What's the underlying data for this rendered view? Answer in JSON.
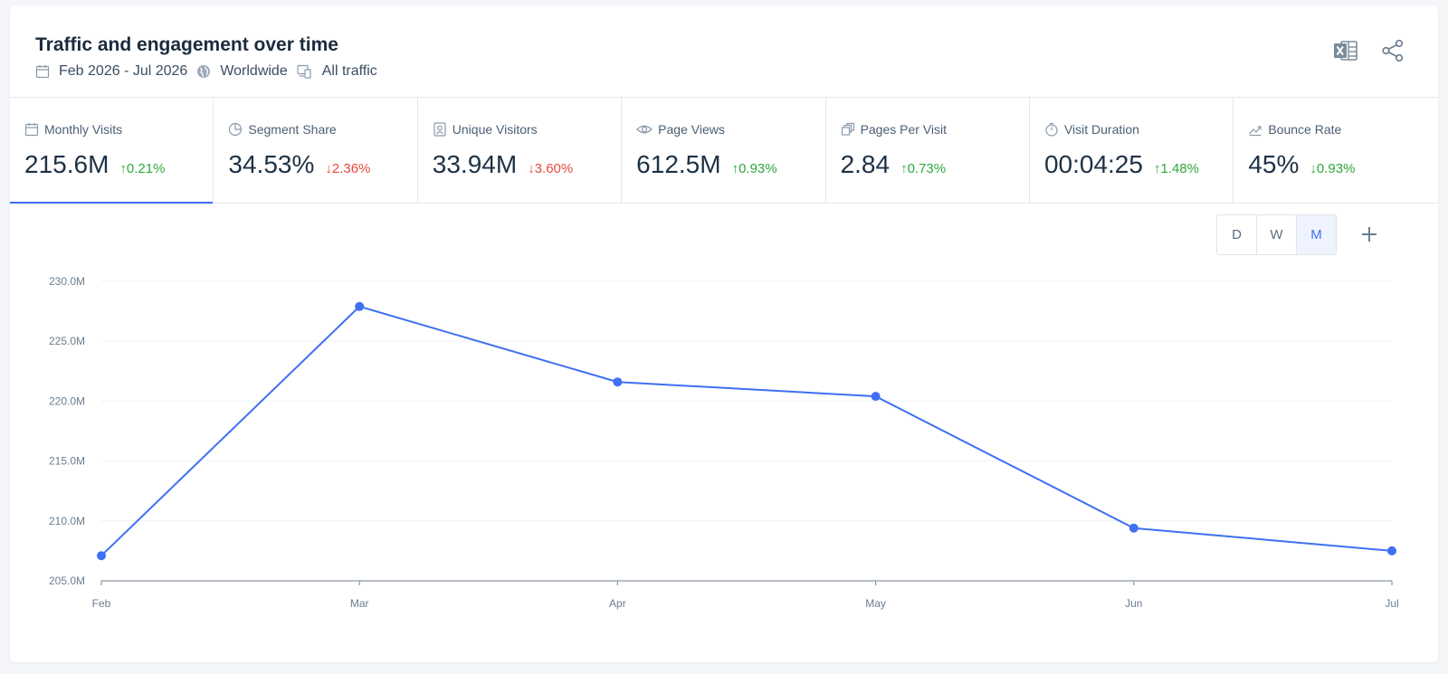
{
  "header": {
    "title": "Traffic and engagement over time",
    "date_range": "Feb 2026 - Jul 2026",
    "region": "Worldwide",
    "traffic": "All traffic",
    "icons": [
      "calendar-icon",
      "globe-icon",
      "devices-icon",
      "excel-icon",
      "share-icon"
    ]
  },
  "metrics": [
    {
      "label": "Monthly Visits",
      "value": "215.6M",
      "change": "0.21%",
      "direction": "up",
      "icon": "calendar-icon"
    },
    {
      "label": "Segment Share",
      "value": "34.53%",
      "change": "2.36%",
      "direction": "down",
      "icon": "pie-icon"
    },
    {
      "label": "Unique Visitors",
      "value": "33.94M",
      "change": "3.60%",
      "direction": "down",
      "icon": "user-badge-icon"
    },
    {
      "label": "Page Views",
      "value": "612.5M",
      "change": "0.93%",
      "direction": "up",
      "icon": "eye-icon"
    },
    {
      "label": "Pages Per Visit",
      "value": "2.84",
      "change": "0.73%",
      "direction": "up",
      "icon": "pages-icon"
    },
    {
      "label": "Visit Duration",
      "value": "00:04:25",
      "change": "1.48%",
      "direction": "up",
      "icon": "stopwatch-icon"
    },
    {
      "label": "Bounce Rate",
      "value": "45%",
      "change": "0.93%",
      "direction": "down-good",
      "icon": "trend-icon"
    }
  ],
  "granularity": {
    "options": [
      "D",
      "W",
      "M"
    ],
    "selected": "M"
  },
  "colors": {
    "accent": "#3f6ff2",
    "up": "#2fa83a",
    "down": "#e64a3b"
  },
  "chart_data": {
    "type": "line",
    "x": [
      "Feb",
      "Mar",
      "Apr",
      "May",
      "Jun",
      "Jul"
    ],
    "series": [
      {
        "values": [
          207.1,
          227.9,
          221.6,
          220.4,
          209.4,
          207.5
        ]
      }
    ],
    "ylim": [
      205,
      230
    ],
    "yticks": [
      "230.0M",
      "225.0M",
      "220.0M",
      "215.0M",
      "210.0M",
      "205.0M"
    ],
    "ytick_values": [
      230,
      225,
      220,
      215,
      210,
      205
    ],
    "grid": true
  }
}
